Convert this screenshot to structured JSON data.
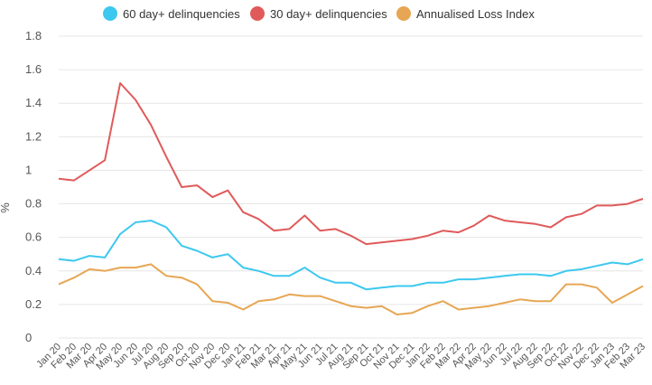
{
  "chart_data": {
    "type": "line",
    "title": "",
    "xlabel": "",
    "ylabel": "%",
    "ylim": [
      0,
      1.8
    ],
    "yticks": [
      "0",
      "0.2",
      "0.4",
      "0.6",
      "0.8",
      "1",
      "1.2",
      "1.4",
      "1.6",
      "1.8"
    ],
    "grid": true,
    "legend_position": "top-center",
    "categories": [
      "Jan 20",
      "Feb 20",
      "Mar 20",
      "Apr 20",
      "May 20",
      "Jun 20",
      "Jul 20",
      "Aug 20",
      "Sep 20",
      "Oct 20",
      "Nov 20",
      "Dec 20",
      "Jan 21",
      "Feb 21",
      "Mar 21",
      "Apr 21",
      "May 21",
      "Jun 21",
      "Jul 21",
      "Aug 21",
      "Sep 21",
      "Oct 21",
      "Nov 21",
      "Dec 21",
      "Jan 22",
      "Feb 22",
      "Mar 22",
      "Apr 22",
      "May 22",
      "Jun 22",
      "Jul 22",
      "Aug 22",
      "Sep 22",
      "Oct 22",
      "Nov 22",
      "Dec 22",
      "Jan 23",
      "Feb 23",
      "Mar 23"
    ],
    "series": [
      {
        "name": "60 day+ delinquencies",
        "color": "#3cc8ef",
        "values": [
          0.47,
          0.46,
          0.49,
          0.48,
          0.62,
          0.69,
          0.7,
          0.66,
          0.55,
          0.52,
          0.48,
          0.5,
          0.42,
          0.4,
          0.37,
          0.37,
          0.42,
          0.36,
          0.33,
          0.33,
          0.29,
          0.3,
          0.31,
          0.31,
          0.33,
          0.33,
          0.35,
          0.35,
          0.36,
          0.37,
          0.38,
          0.38,
          0.37,
          0.4,
          0.41,
          0.43,
          0.45,
          0.44,
          0.47
        ]
      },
      {
        "name": "30 day+ delinquencies",
        "color": "#e05a5a",
        "values": [
          0.95,
          0.94,
          1.0,
          1.06,
          1.52,
          1.42,
          1.27,
          1.08,
          0.9,
          0.91,
          0.84,
          0.88,
          0.75,
          0.71,
          0.64,
          0.65,
          0.73,
          0.64,
          0.65,
          0.61,
          0.56,
          0.57,
          0.58,
          0.59,
          0.61,
          0.64,
          0.63,
          0.67,
          0.73,
          0.7,
          0.69,
          0.68,
          0.66,
          0.72,
          0.74,
          0.79,
          0.79,
          0.8,
          0.83
        ]
      },
      {
        "name": "Annualised Loss Index",
        "color": "#e7a653",
        "values": [
          0.32,
          0.36,
          0.41,
          0.4,
          0.42,
          0.42,
          0.44,
          0.37,
          0.36,
          0.32,
          0.22,
          0.21,
          0.17,
          0.22,
          0.23,
          0.26,
          0.25,
          0.25,
          0.22,
          0.19,
          0.18,
          0.19,
          0.14,
          0.15,
          0.19,
          0.22,
          0.17,
          0.18,
          0.19,
          0.21,
          0.23,
          0.22,
          0.22,
          0.32,
          0.32,
          0.3,
          0.21,
          0.26,
          0.31
        ]
      }
    ]
  }
}
